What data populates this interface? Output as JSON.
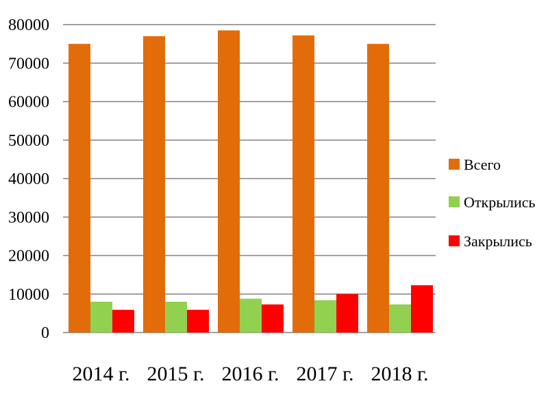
{
  "chart_data": {
    "type": "bar",
    "title": "",
    "xlabel": "",
    "ylabel": "",
    "categories": [
      "2014 г.",
      "2015 г.",
      "2016 г.",
      "2017 г.",
      "2018 г."
    ],
    "series": [
      {
        "name": "Всего",
        "color": "#E36C0A",
        "values": [
          75000,
          77000,
          78500,
          77200,
          75000
        ]
      },
      {
        "name": "Открылись",
        "color": "#92D050",
        "values": [
          8000,
          8000,
          8800,
          8400,
          7300
        ]
      },
      {
        "name": "Закрылись",
        "color": "#FF0000",
        "values": [
          5900,
          5900,
          7300,
          10000,
          12300
        ]
      }
    ],
    "ylim": [
      0,
      80000
    ],
    "yticks": [
      "0",
      "10000",
      "20000",
      "30000",
      "40000",
      "50000",
      "60000",
      "70000",
      "80000"
    ],
    "grid": true,
    "legend_position": "right"
  }
}
